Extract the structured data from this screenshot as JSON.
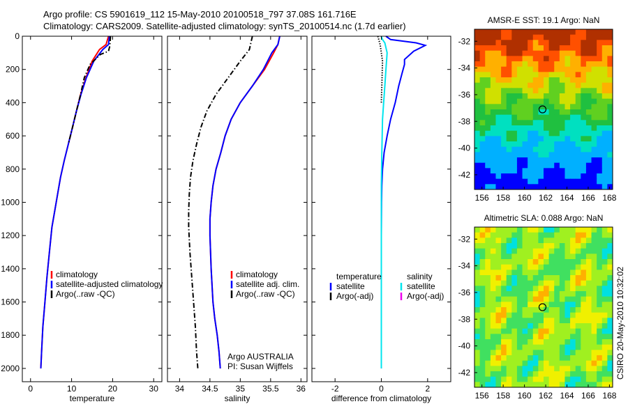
{
  "header": {
    "line1": "Argo profile: CS 5901619_112 15-May-2010 20100518_797 37.08S 161.716E",
    "line2": "Climatology: CARS2009. Satellite-adjusted climatology: synTS_20100514.nc (1.7d earlier)"
  },
  "side_label": "CSIRO 20-May-2010 10:32:02",
  "chart_data": [
    {
      "id": "temperature",
      "type": "line",
      "xlabel": "temperature",
      "ylabel": "",
      "xlim": [
        -2,
        32
      ],
      "ylim": [
        2080,
        0
      ],
      "y_reversed": true,
      "xticks": [
        0,
        10,
        20,
        30
      ],
      "yticks": [
        0,
        200,
        400,
        600,
        800,
        1000,
        1200,
        1400,
        1600,
        1800,
        2000
      ],
      "legend": [
        "climatology",
        "satellite-adjusted climatology",
        "Argo(..raw -QC)"
      ],
      "series": [
        {
          "name": "climatology",
          "color": "#ff0000",
          "style": "solid",
          "x": [
            19.0,
            18.4,
            16.8,
            15.0,
            13.5,
            12.2,
            11.2,
            10.2,
            9.2,
            8.2,
            7.3,
            6.6,
            5.9,
            5.2,
            4.6,
            4.0,
            3.5,
            3.0,
            2.7,
            2.5
          ],
          "y": [
            0,
            50,
            80,
            150,
            250,
            350,
            450,
            550,
            650,
            750,
            850,
            950,
            1050,
            1150,
            1300,
            1450,
            1600,
            1750,
            1900,
            2000
          ]
        },
        {
          "name": "satellite-adjusted climatology",
          "color": "#0000ff",
          "style": "solid",
          "x": [
            19.2,
            19.0,
            17.6,
            15.4,
            13.6,
            12.3,
            11.2,
            10.2,
            9.2,
            8.2,
            7.3,
            6.6,
            5.9,
            5.2,
            4.6,
            4.0,
            3.5,
            3.0,
            2.7,
            2.5
          ],
          "y": [
            0,
            50,
            80,
            150,
            250,
            350,
            450,
            550,
            650,
            750,
            850,
            950,
            1050,
            1150,
            1300,
            1450,
            1600,
            1750,
            1900,
            2000
          ]
        },
        {
          "name": "Argo(..raw -QC)",
          "color": "#000000",
          "style": "dashdot",
          "x": [
            19.5,
            19.3,
            19.0,
            17.0,
            14.5,
            13.1,
            12.2,
            11.2,
            10.2,
            9.2
          ],
          "y": [
            0,
            60,
            90,
            110,
            170,
            250,
            350,
            450,
            550,
            650
          ]
        }
      ]
    },
    {
      "id": "salinity",
      "type": "line",
      "xlabel": "salinity",
      "ylabel": "",
      "xlim": [
        33.8,
        36.1
      ],
      "ylim": [
        2080,
        0
      ],
      "y_reversed": true,
      "xticks": [
        34,
        34.5,
        35,
        35.5,
        36
      ],
      "yticks": [
        0,
        200,
        400,
        600,
        800,
        1000,
        1200,
        1400,
        1600,
        1800,
        2000
      ],
      "legend": [
        "climatology",
        "satellite adj. clim.",
        "Argo(..raw -QC)"
      ],
      "annotation": [
        "Argo AUSTRALIA",
        "PI: Susan Wijffels"
      ],
      "series": [
        {
          "name": "climatology",
          "color": "#ff0000",
          "style": "solid",
          "x": [
            35.65,
            35.62,
            35.55,
            35.4,
            35.2,
            35.0,
            34.85,
            34.75,
            34.68,
            34.6,
            34.55,
            34.52,
            34.5,
            34.5,
            34.52,
            34.55,
            34.58,
            34.62,
            34.65,
            34.67
          ],
          "y": [
            0,
            50,
            100,
            200,
            300,
            400,
            500,
            600,
            700,
            800,
            900,
            1000,
            1100,
            1200,
            1400,
            1600,
            1700,
            1800,
            1900,
            2000
          ]
        },
        {
          "name": "satellite adj. clim.",
          "color": "#0000ff",
          "style": "solid",
          "x": [
            35.65,
            35.62,
            35.52,
            35.38,
            35.2,
            35.0,
            34.85,
            34.75,
            34.68,
            34.6,
            34.55,
            34.52,
            34.5,
            34.5,
            34.52,
            34.55,
            34.58,
            34.62,
            34.65,
            34.67
          ],
          "y": [
            0,
            50,
            100,
            200,
            300,
            400,
            500,
            600,
            700,
            800,
            900,
            1000,
            1100,
            1200,
            1400,
            1600,
            1700,
            1800,
            1900,
            2000
          ]
        },
        {
          "name": "Argo(..raw -QC)",
          "color": "#000000",
          "style": "dashdot",
          "x": [
            35.2,
            35.15,
            35.0,
            34.8,
            34.6,
            34.45,
            34.35,
            34.28,
            34.22,
            34.18,
            34.16,
            34.15,
            34.15,
            34.17,
            34.2,
            34.23,
            34.26,
            34.28,
            34.3
          ],
          "y": [
            0,
            80,
            150,
            250,
            350,
            450,
            550,
            650,
            750,
            850,
            950,
            1050,
            1150,
            1300,
            1450,
            1600,
            1750,
            1900,
            2000
          ]
        }
      ]
    },
    {
      "id": "difference",
      "type": "line",
      "xlabel": "difference from climatology",
      "ylabel": "",
      "xlim": [
        -3,
        3
      ],
      "ylim": [
        2080,
        0
      ],
      "y_reversed": true,
      "xticks": [
        -2,
        0,
        2
      ],
      "yticks": [
        0,
        200,
        400,
        600,
        800,
        1000,
        1200,
        1400,
        1600,
        1800,
        2000
      ],
      "legend_headers": [
        "temperature",
        "salinity"
      ],
      "legend": [
        "satellite",
        "Argo(-adj)",
        "satellite",
        "Argo(-adj)"
      ],
      "series": [
        {
          "name": "temperature satellite",
          "color": "#0000ff",
          "style": "solid",
          "x": [
            0.2,
            0.4,
            1.5,
            1.9,
            1.4,
            1.0,
            1.0,
            0.9,
            0.75,
            0.6,
            0.4,
            0.25,
            0.12,
            0.05,
            0.02,
            0.01,
            0.0,
            0.0,
            0.0,
            0.0
          ],
          "y": [
            0,
            20,
            40,
            55,
            90,
            140,
            170,
            220,
            300,
            400,
            500,
            600,
            700,
            800,
            900,
            1000,
            1200,
            1500,
            1800,
            2000
          ]
        },
        {
          "name": "salinity satellite",
          "color": "#00e5ee",
          "style": "solid",
          "x": [
            0.0,
            0.05,
            0.15,
            0.25,
            0.2,
            0.15,
            0.1,
            0.05,
            0.02,
            0.0,
            0.0,
            0.0
          ],
          "y": [
            0,
            20,
            40,
            100,
            200,
            300,
            400,
            500,
            700,
            900,
            1400,
            2000
          ]
        },
        {
          "name": "Argo(-adj)",
          "color": "#000000",
          "style": "dotted",
          "x": [
            -0.15,
            -0.05,
            0.05,
            0.02,
            0.0
          ],
          "y": [
            0,
            50,
            150,
            300,
            400
          ]
        }
      ]
    }
  ],
  "maps": [
    {
      "title": "AMSR-E SST: 19.1 Argo: NaN",
      "xticks": [
        156,
        158,
        160,
        162,
        164,
        166,
        168
      ],
      "yticks": [
        -32,
        -34,
        -36,
        -38,
        -40,
        -42
      ],
      "xlim": [
        155.3,
        168.3
      ],
      "ylim": [
        -43.1,
        -31.1
      ],
      "argo": [
        161.7,
        -37.1
      ]
    },
    {
      "title": "Altimetric SLA: 0.088 Argo: NaN",
      "xticks": [
        156,
        158,
        160,
        162,
        164,
        166,
        168
      ],
      "yticks": [
        -32,
        -34,
        -36,
        -38,
        -40,
        -42
      ],
      "xlim": [
        155.3,
        168.3
      ],
      "ylim": [
        -43.1,
        -31.1
      ],
      "argo": [
        161.7,
        -37.1
      ]
    }
  ]
}
